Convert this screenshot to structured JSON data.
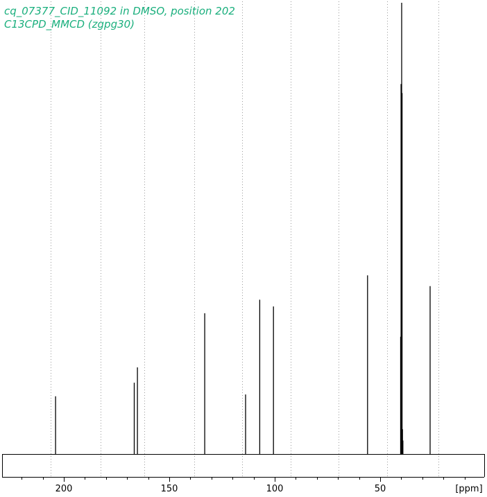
{
  "header": {
    "title_line1": "cq_07377_CID_11092 in DMSO, position 202",
    "title_line2": "C13CPD_MMCD (zgpg30)"
  },
  "colors": {
    "title": "#1aaf7d",
    "spectrum": "#000000",
    "grid": "#9a9a9a",
    "background": "#ffffff"
  },
  "chart_data": {
    "type": "line",
    "title": "cq_07377_CID_11092 in DMSO, position 202",
    "subtitle": "C13CPD_MMCD (zgpg30)",
    "xlabel": "[ppm]",
    "ylabel": "",
    "x_reversed": true,
    "xlim": [
      228,
      0
    ],
    "ylim": [
      0,
      1
    ],
    "x_major_ticks": [
      200,
      150,
      100,
      50
    ],
    "x_minor_step": 10,
    "grid_lines_x": [
      206.4,
      182.5,
      161.8,
      138.2,
      115.4,
      92.5,
      69.8,
      46.8,
      22.5
    ],
    "grid": "vertical dotted",
    "peaks": [
      {
        "ppm": 203.9,
        "intensity": 0.128
      },
      {
        "ppm": 166.6,
        "intensity": 0.158
      },
      {
        "ppm": 165.1,
        "intensity": 0.192
      },
      {
        "ppm": 133.2,
        "intensity": 0.312
      },
      {
        "ppm": 113.8,
        "intensity": 0.132
      },
      {
        "ppm": 107.1,
        "intensity": 0.342
      },
      {
        "ppm": 100.6,
        "intensity": 0.327
      },
      {
        "ppm": 56.0,
        "intensity": 0.396
      },
      {
        "ppm": 40.3,
        "intensity": 0.26
      },
      {
        "ppm": 40.1,
        "intensity": 0.82
      },
      {
        "ppm": 39.8,
        "intensity": 1.0
      },
      {
        "ppm": 39.6,
        "intensity": 0.8
      },
      {
        "ppm": 39.4,
        "intensity": 0.055
      },
      {
        "ppm": 39.2,
        "intensity": 0.03
      },
      {
        "ppm": 26.3,
        "intensity": 0.372
      }
    ]
  }
}
